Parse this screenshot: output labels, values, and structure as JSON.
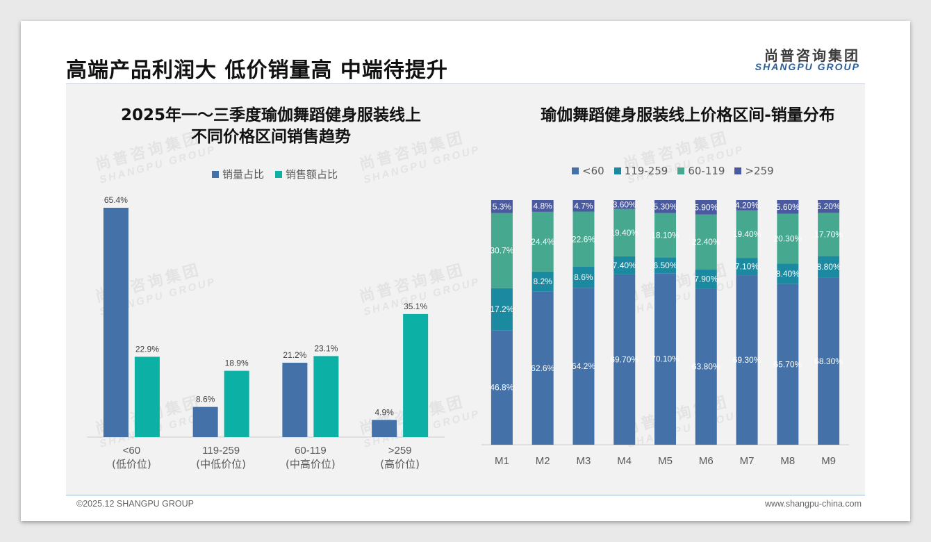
{
  "header": {
    "title": "高端产品利润大 低价销量高 中端待提升",
    "logo_cn": "尚普咨询集团",
    "logo_en": "SHANGPU GROUP"
  },
  "watermark": {
    "cn": "尚普咨询集团",
    "en": "SHANGPU GROUP"
  },
  "footer": {
    "copyright": "©2025.12 SHANGPU GROUP",
    "website": "www.shangpu-china.com"
  },
  "colors": {
    "sales_volume": "#4472a8",
    "sales_amount": "#0db0a5",
    "lt60": "#4472a8",
    "r119_259": "#1b8aa0",
    "r60_119": "#46a88f",
    "gt259": "#4a5aa0"
  },
  "chart_data": [
    {
      "type": "bar",
      "title_line1": "2025年一～三季度瑜伽舞蹈健身服装线上",
      "title_line2": "不同价格区间销售趋势",
      "categories": [
        "<60",
        "119-259",
        "60-119",
        ">259"
      ],
      "category_sublabels": [
        "(低价位)",
        "(中低价位)",
        "(中高价位)",
        "(高价位)"
      ],
      "series": [
        {
          "name": "销量占比",
          "values": [
            65.4,
            8.6,
            21.2,
            4.9
          ],
          "labels": [
            "65.4%",
            "8.6%",
            "21.2%",
            "4.9%"
          ]
        },
        {
          "name": "销售额占比",
          "values": [
            22.9,
            18.9,
            23.1,
            35.1
          ],
          "labels": [
            "22.9%",
            "18.9%",
            "23.1%",
            "35.1%"
          ]
        }
      ],
      "ylim": [
        0,
        70
      ],
      "grid": false,
      "legend": "top"
    },
    {
      "type": "bar",
      "stacked": true,
      "title": "瑜伽舞蹈健身服装线上价格区间-销量分布",
      "categories": [
        "M1",
        "M2",
        "M3",
        "M4",
        "M5",
        "M6",
        "M7",
        "M8",
        "M9"
      ],
      "legend_labels": [
        "<60",
        "119-259",
        "60-119",
        ">259"
      ],
      "series": [
        {
          "name": "<60",
          "values": [
            46.8,
            62.6,
            64.2,
            69.7,
            70.1,
            63.8,
            69.3,
            65.7,
            68.3
          ],
          "labels": [
            "46.8%",
            "62.6%",
            "64.2%",
            "69.70%",
            "70.10%",
            "63.80%",
            "69.30%",
            "65.70%",
            "68.30%"
          ]
        },
        {
          "name": "119-259",
          "values": [
            17.2,
            8.2,
            8.6,
            7.4,
            6.5,
            7.9,
            7.1,
            8.4,
            8.8
          ],
          "labels": [
            "17.2%",
            "8.2%",
            "8.6%",
            "7.40%",
            "6.50%",
            "7.90%",
            "7.10%",
            "8.40%",
            "8.80%"
          ]
        },
        {
          "name": "60-119",
          "values": [
            30.7,
            24.4,
            22.6,
            19.4,
            18.1,
            22.4,
            19.4,
            20.3,
            17.7
          ],
          "labels": [
            "30.7%",
            "24.4%",
            "22.6%",
            "19.40%",
            "18.10%",
            "22.40%",
            "19.40%",
            "20.30%",
            "17.70%"
          ]
        },
        {
          "name": ">259",
          "values": [
            5.3,
            4.8,
            4.7,
            3.6,
            5.3,
            5.9,
            4.2,
            5.6,
            5.2
          ],
          "labels": [
            "5.3%",
            "4.8%",
            "4.7%",
            "3.60%",
            "5.30%",
            "5.90%",
            "4.20%",
            "5.60%",
            "5.20%"
          ]
        }
      ],
      "ylim": [
        0,
        100
      ],
      "grid": false,
      "legend": "top"
    }
  ]
}
